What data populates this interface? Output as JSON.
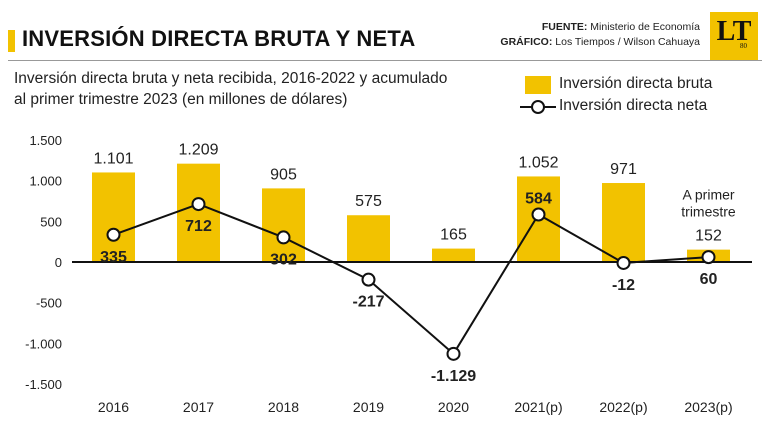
{
  "title": "INVERSIÓN DIRECTA BRUTA Y NETA",
  "source": {
    "fuente_label": "FUENTE:",
    "fuente_value": "Ministerio de Economía",
    "grafico_label": "GRÁFICO:",
    "grafico_value": "Los Tiempos / Wilson Cahuaya"
  },
  "logo": {
    "text": "LT",
    "sub": "80"
  },
  "subtitle_line1": "Inversión directa bruta y neta recibida, 2016-2022 y acumulado",
  "subtitle_line2": "al primer trimestre 2023 (en millones de dólares)",
  "colors": {
    "bar": "#f2c200",
    "line": "#111111",
    "text": "#222222"
  },
  "chart_data": {
    "type": "bar",
    "categories": [
      "2016",
      "2017",
      "2018",
      "2019",
      "2020",
      "2021(p)",
      "2022(p)",
      "2023(p)"
    ],
    "series": [
      {
        "name": "Inversión directa bruta",
        "type": "bar",
        "values": [
          1101,
          1209,
          905,
          575,
          165,
          1052,
          971,
          152
        ],
        "labels": [
          "1.101",
          "1.209",
          "905",
          "575",
          "165",
          "1.052",
          "971",
          "152"
        ]
      },
      {
        "name": "Inversión directa neta",
        "type": "line",
        "values": [
          335,
          712,
          302,
          -217,
          -1129,
          584,
          -12,
          60
        ],
        "labels": [
          "335",
          "712",
          "302",
          "-217",
          "-1.129",
          "584",
          "-12",
          "60"
        ]
      }
    ],
    "yticks": [
      1500,
      1000,
      500,
      0,
      -500,
      -1000,
      -1500
    ],
    "ytick_labels": [
      "1.500",
      "1.000",
      "500",
      "0",
      "-500",
      "-1.000",
      "-1.500"
    ],
    "ylim": [
      -1500,
      1500
    ],
    "annotation": {
      "line1": "A primer",
      "line2": "trimestre"
    },
    "legend_position": "top-right",
    "grid": false
  }
}
